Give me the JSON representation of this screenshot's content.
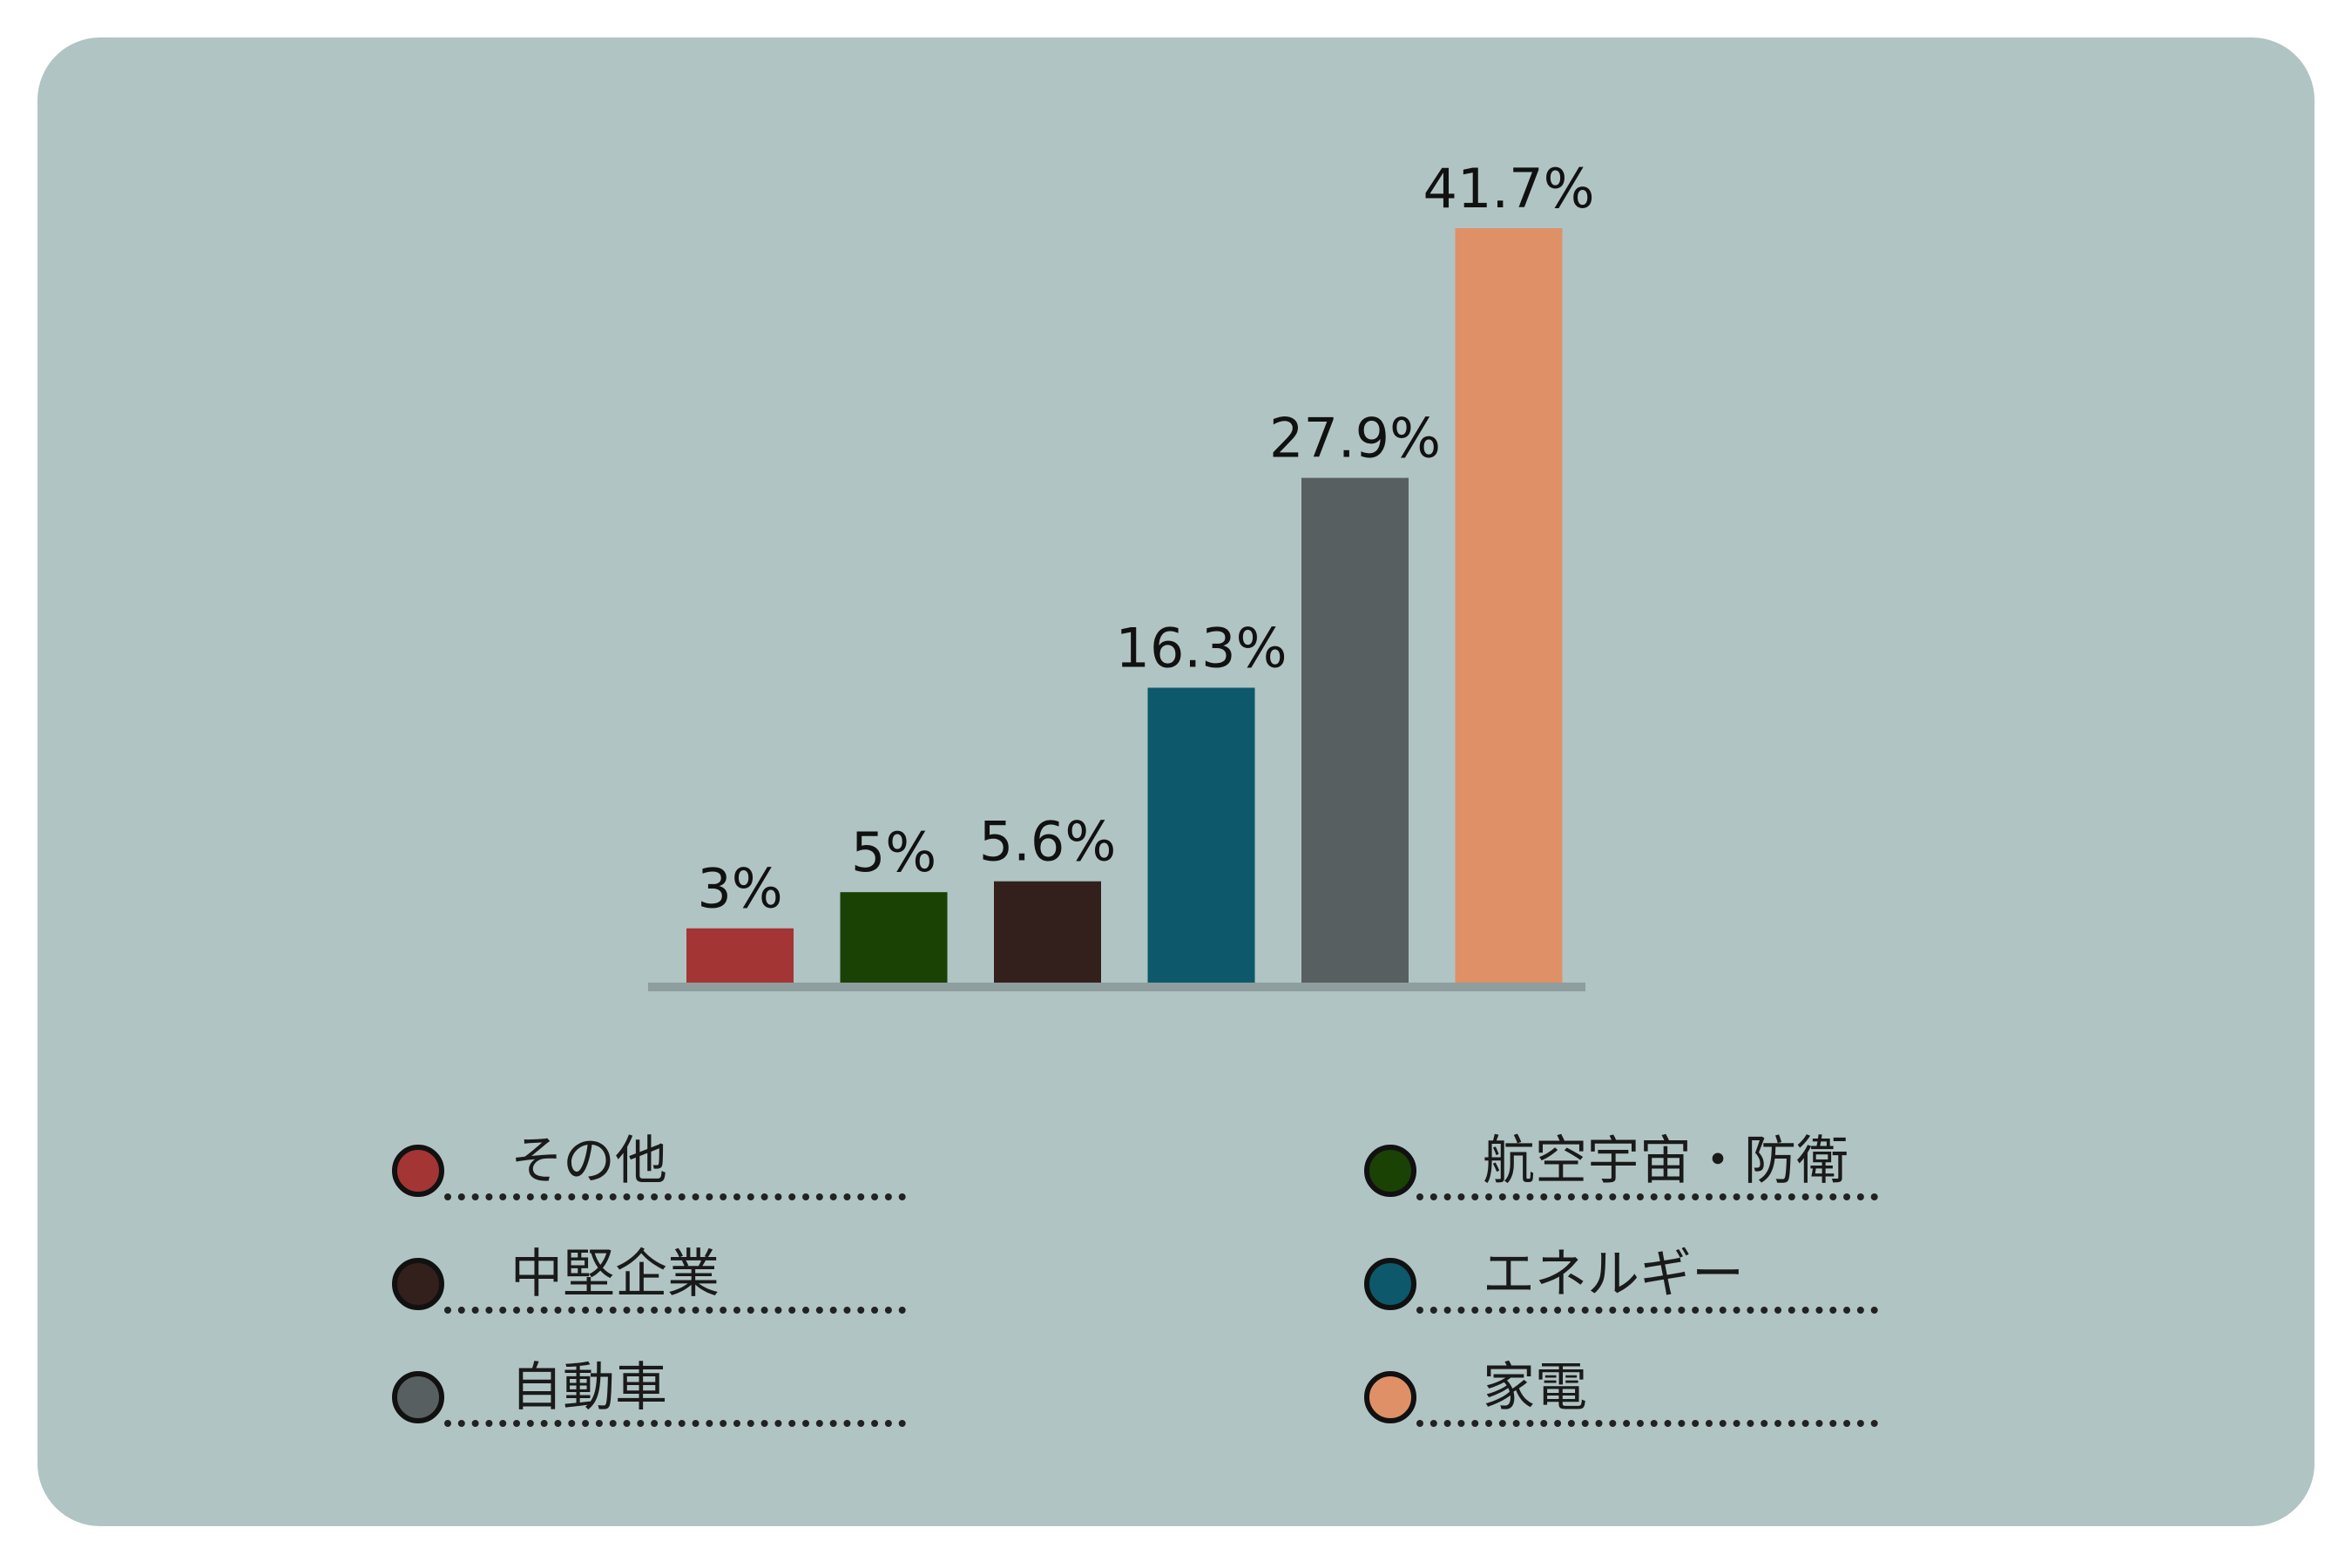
{
  "chart_data": {
    "type": "bar",
    "categories": [
      "その他",
      "航空宇宙・防衛",
      "中堅企業",
      "エネルギー",
      "自動車",
      "家電"
    ],
    "values": [
      3,
      5,
      5.6,
      16.3,
      27.9,
      41.7
    ],
    "value_labels": [
      "3%",
      "5%",
      "5.6%",
      "16.3%",
      "27.9%",
      "41.7%"
    ],
    "colors": [
      "#a33535",
      "#1a4205",
      "#33201c",
      "#0d586b",
      "#585f60",
      "#e09066"
    ],
    "ylim": [
      0,
      41.7
    ],
    "unit": "%",
    "grid": false,
    "legend_position": "bottom"
  },
  "legend": [
    {
      "label": "その他",
      "color": "#a33535"
    },
    {
      "label": "航空宇宙・防衛",
      "color": "#1a4205"
    },
    {
      "label": "中堅企業",
      "color": "#33201c"
    },
    {
      "label": "エネルギー",
      "color": "#0d586b"
    },
    {
      "label": "自動車",
      "color": "#585f60"
    },
    {
      "label": "家電",
      "color": "#e09066"
    }
  ],
  "colors": {
    "background": "#b0c4c3",
    "baseline": "#8e9e9e",
    "page": "#ffffff"
  }
}
